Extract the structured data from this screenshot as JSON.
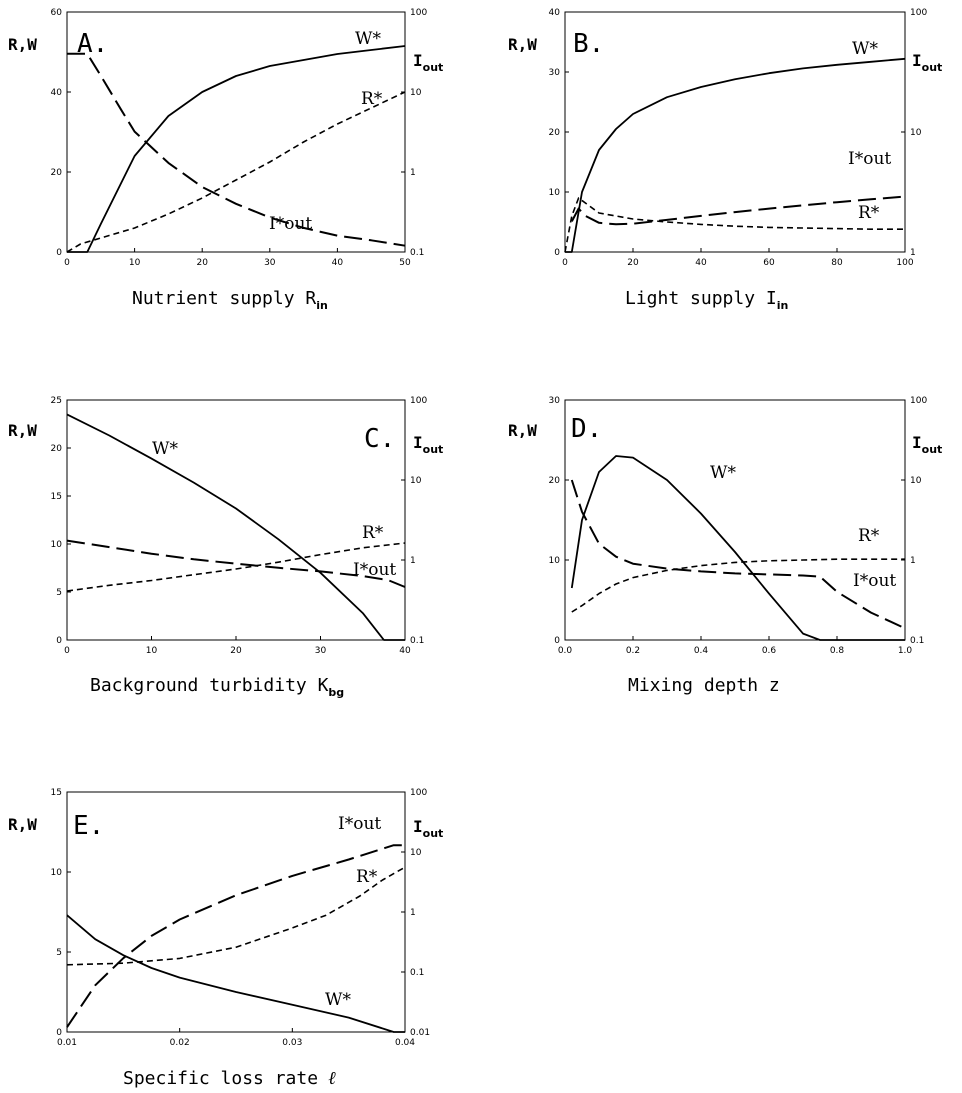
{
  "chart_data": [
    {
      "type": "line",
      "panel_label": "A.",
      "xlabel": "Nutrient supply R",
      "xlabel_sub": "in",
      "ylabel_left": "R,W",
      "ylabel_right": "I",
      "ylabel_right_sub": "out",
      "xlim": [
        0,
        50
      ],
      "ylim_left": [
        0,
        60
      ],
      "ylim_right": [
        0.1,
        100
      ],
      "y_right_scale": "log",
      "x_ticks": [
        0,
        10,
        20,
        30,
        40,
        50
      ],
      "y_left_ticks": [
        0,
        20,
        40,
        60
      ],
      "y_right_ticks": [
        0.1,
        1,
        10,
        100
      ],
      "series": [
        {
          "name": "W*",
          "style": "solid",
          "axis": "left",
          "x": [
            0,
            3,
            5,
            10,
            15,
            20,
            25,
            30,
            35,
            40,
            45,
            50
          ],
          "y": [
            0,
            0,
            7,
            24,
            34,
            40,
            44,
            46.5,
            48,
            49.5,
            50.5,
            51.5
          ]
        },
        {
          "name": "R*",
          "style": "short-dash",
          "axis": "left",
          "x": [
            0,
            2,
            5,
            10,
            15,
            20,
            25,
            30,
            35,
            40,
            45,
            50
          ],
          "y": [
            0,
            2,
            3.5,
            6,
            9.5,
            13.5,
            18,
            22.5,
            27.5,
            32,
            36,
            40
          ]
        },
        {
          "name": "I*out",
          "style": "long-dash",
          "axis": "right",
          "x": [
            0,
            3,
            5,
            8,
            10,
            15,
            20,
            25,
            30,
            35,
            40,
            45,
            50
          ],
          "y": [
            30,
            30,
            16,
            6,
            3.2,
            1.3,
            0.65,
            0.4,
            0.27,
            0.2,
            0.16,
            0.14,
            0.12
          ]
        }
      ],
      "annotations": [
        "W*",
        "R*",
        "I*out"
      ]
    },
    {
      "type": "line",
      "panel_label": "B.",
      "xlabel": "Light supply I",
      "xlabel_sub": "in",
      "ylabel_left": "R,W",
      "ylabel_right": "I",
      "ylabel_right_sub": "out",
      "xlim": [
        0,
        100
      ],
      "ylim_left": [
        0,
        40
      ],
      "ylim_right": [
        1,
        100
      ],
      "y_right_scale": "log",
      "x_ticks": [
        0,
        20,
        40,
        60,
        80,
        100
      ],
      "y_left_ticks": [
        0,
        10,
        20,
        30,
        40
      ],
      "y_right_ticks": [
        1,
        10,
        100
      ],
      "series": [
        {
          "name": "W*",
          "style": "solid",
          "axis": "left",
          "x": [
            0,
            2,
            5,
            10,
            15,
            20,
            30,
            40,
            50,
            60,
            70,
            80,
            90,
            100
          ],
          "y": [
            0,
            0,
            10,
            17,
            20.5,
            23,
            25.8,
            27.5,
            28.8,
            29.8,
            30.6,
            31.2,
            31.7,
            32.2
          ]
        },
        {
          "name": "R*",
          "style": "short-dash",
          "axis": "left",
          "x": [
            0,
            2,
            4,
            10,
            20,
            30,
            40,
            50,
            60,
            70,
            80,
            90,
            100
          ],
          "y": [
            0,
            6,
            9,
            6.5,
            5.5,
            5,
            4.6,
            4.3,
            4.1,
            4,
            3.9,
            3.8,
            3.8
          ]
        },
        {
          "name": "I*out",
          "style": "long-dash",
          "axis": "right",
          "x": [
            2,
            4,
            6,
            10,
            15,
            20,
            30,
            40,
            50,
            60,
            70,
            80,
            90,
            100
          ],
          "y": [
            1.8,
            2.3,
            2.0,
            1.75,
            1.7,
            1.72,
            1.85,
            2.0,
            2.15,
            2.3,
            2.45,
            2.6,
            2.75,
            2.9
          ]
        }
      ],
      "annotations": [
        "W*",
        "I*out",
        "R*"
      ]
    },
    {
      "type": "line",
      "panel_label": "C.",
      "xlabel": "Background turbidity K",
      "xlabel_sub": "bg",
      "ylabel_left": "R,W",
      "ylabel_right": "I",
      "ylabel_right_sub": "out",
      "xlim": [
        0,
        40
      ],
      "ylim_left": [
        0,
        25
      ],
      "ylim_right": [
        0.1,
        100
      ],
      "y_right_scale": "log",
      "x_ticks": [
        0,
        10,
        20,
        30,
        40
      ],
      "y_left_ticks": [
        0,
        5,
        10,
        15,
        20,
        25
      ],
      "y_right_ticks": [
        0.1,
        1,
        10,
        100
      ],
      "series": [
        {
          "name": "W*",
          "style": "solid",
          "axis": "left",
          "x": [
            0,
            5,
            10,
            15,
            20,
            25,
            30,
            35,
            37.5,
            40
          ],
          "y": [
            23.5,
            21.3,
            18.9,
            16.4,
            13.7,
            10.5,
            7,
            2.8,
            0,
            0
          ]
        },
        {
          "name": "R*",
          "style": "short-dash",
          "axis": "left",
          "x": [
            0,
            5,
            10,
            15,
            20,
            25,
            30,
            35,
            40
          ],
          "y": [
            5.1,
            5.7,
            6.2,
            6.8,
            7.4,
            8.1,
            8.9,
            9.6,
            10.1
          ]
        },
        {
          "name": "I*out",
          "style": "long-dash",
          "axis": "right",
          "x": [
            0,
            5,
            10,
            15,
            20,
            25,
            30,
            35,
            38,
            40
          ],
          "y": [
            1.75,
            1.45,
            1.2,
            1.02,
            0.9,
            0.8,
            0.72,
            0.63,
            0.56,
            0.46
          ]
        }
      ],
      "annotations": [
        "W*",
        "R*",
        "I*out"
      ]
    },
    {
      "type": "line",
      "panel_label": "D.",
      "xlabel": "Mixing depth z",
      "xlabel_sub": "",
      "ylabel_left": "R,W",
      "ylabel_right": "I",
      "ylabel_right_sub": "out",
      "xlim": [
        0,
        1
      ],
      "ylim_left": [
        0,
        30
      ],
      "ylim_right": [
        0.1,
        100
      ],
      "y_right_scale": "log",
      "x_ticks": [
        "0.0",
        "0.2",
        "0.4",
        "0.6",
        "0.8",
        "1.0"
      ],
      "y_left_ticks": [
        0,
        10,
        20,
        30
      ],
      "y_right_ticks": [
        0.1,
        1,
        10,
        100
      ],
      "series": [
        {
          "name": "W*",
          "style": "solid",
          "axis": "left",
          "x": [
            0.02,
            0.05,
            0.1,
            0.15,
            0.2,
            0.3,
            0.4,
            0.5,
            0.6,
            0.7,
            0.75,
            1.0
          ],
          "y": [
            6.5,
            15,
            21,
            23,
            22.8,
            20,
            15.8,
            11,
            5.8,
            0.8,
            0,
            0
          ]
        },
        {
          "name": "R*",
          "style": "short-dash",
          "axis": "left",
          "x": [
            0.02,
            0.05,
            0.1,
            0.15,
            0.2,
            0.3,
            0.4,
            0.5,
            0.6,
            0.7,
            0.8,
            0.9,
            1.0
          ],
          "y": [
            3.5,
            4.3,
            5.8,
            7,
            7.8,
            8.7,
            9.3,
            9.7,
            9.9,
            10,
            10.1,
            10.1,
            10.1
          ]
        },
        {
          "name": "I*out",
          "style": "long-dash",
          "axis": "right",
          "x": [
            0.02,
            0.05,
            0.1,
            0.15,
            0.2,
            0.3,
            0.4,
            0.5,
            0.6,
            0.7,
            0.75,
            0.8,
            0.9,
            1.0
          ],
          "y": [
            10,
            4,
            1.6,
            1.1,
            0.9,
            0.78,
            0.72,
            0.68,
            0.66,
            0.64,
            0.62,
            0.4,
            0.22,
            0.14
          ]
        }
      ],
      "annotations": [
        "W*",
        "R*",
        "I*out"
      ]
    },
    {
      "type": "line",
      "panel_label": "E.",
      "xlabel": "Specific loss rate",
      "xlabel_symbol": "ℓ",
      "ylabel_left": "R,W",
      "ylabel_right": "I",
      "ylabel_right_sub": "out",
      "xlim": [
        0.01,
        0.04
      ],
      "ylim_left": [
        0,
        15
      ],
      "ylim_right": [
        0.01,
        100
      ],
      "y_right_scale": "log",
      "x_ticks": [
        "0.01",
        "0.02",
        "0.03",
        "0.04"
      ],
      "y_left_ticks": [
        0,
        5,
        10,
        15
      ],
      "y_right_ticks": [
        0.01,
        0.1,
        1,
        10,
        100
      ],
      "series": [
        {
          "name": "W*",
          "style": "solid",
          "axis": "left",
          "x": [
            0.01,
            0.0125,
            0.015,
            0.0175,
            0.02,
            0.025,
            0.03,
            0.035,
            0.039,
            0.04
          ],
          "y": [
            7.3,
            5.8,
            4.8,
            4.0,
            3.4,
            2.5,
            1.7,
            0.9,
            0,
            0
          ]
        },
        {
          "name": "R*",
          "style": "short-dash",
          "axis": "left",
          "x": [
            0.01,
            0.015,
            0.02,
            0.025,
            0.03,
            0.033,
            0.036,
            0.038,
            0.04
          ],
          "y": [
            4.2,
            4.3,
            4.6,
            5.3,
            6.5,
            7.3,
            8.5,
            9.5,
            10.3
          ]
        },
        {
          "name": "I*out",
          "style": "long-dash",
          "axis": "right",
          "x": [
            0.01,
            0.0125,
            0.015,
            0.0175,
            0.02,
            0.025,
            0.03,
            0.035,
            0.039,
            0.04
          ],
          "y": [
            0.012,
            0.06,
            0.17,
            0.4,
            0.75,
            1.9,
            4,
            7.5,
            13,
            13
          ]
        }
      ],
      "annotations": [
        "I*out",
        "R*",
        "W*"
      ]
    }
  ]
}
